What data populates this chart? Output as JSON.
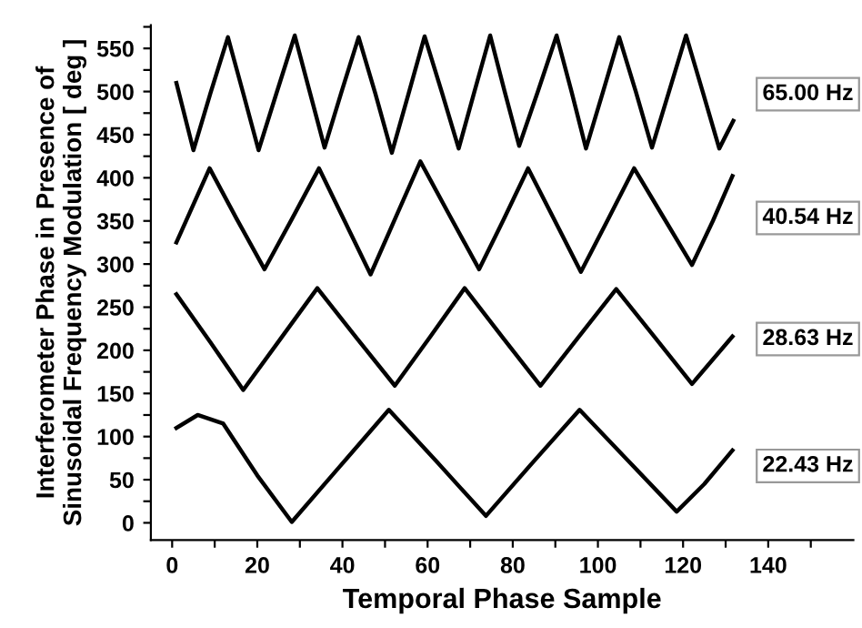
{
  "chart_data": {
    "type": "line",
    "xlabel": "Temporal Phase Sample",
    "ylabel": "Interferometer Phase in Presence of\nSinusoidal Frequency Modulation [ deg ]",
    "xlim": [
      -5,
      160
    ],
    "ylim": [
      -20,
      577
    ],
    "xticks": [
      0,
      {
        "value": 10,
        "label": null
      },
      20,
      {
        "value": 30,
        "label": null
      },
      40,
      {
        "value": 50,
        "label": null
      },
      60,
      {
        "value": 70,
        "label": null
      },
      80,
      {
        "value": 90,
        "label": null
      },
      100,
      {
        "value": 110,
        "label": null
      },
      120,
      {
        "value": 130,
        "label": null
      },
      140,
      {
        "value": 150,
        "label": null
      }
    ],
    "yticks": [
      0,
      {
        "value": 25,
        "label": null
      },
      50,
      {
        "value": 75,
        "label": null
      },
      100,
      {
        "value": 125,
        "label": null
      },
      150,
      {
        "value": 175,
        "label": null
      },
      200,
      {
        "value": 225,
        "label": null
      },
      250,
      {
        "value": 275,
        "label": null
      },
      300,
      {
        "value": 325,
        "label": null
      },
      350,
      {
        "value": 375,
        "label": null
      },
      400,
      {
        "value": 425,
        "label": null
      },
      450,
      {
        "value": 475,
        "label": null
      },
      500,
      {
        "value": 525,
        "label": null
      },
      550,
      {
        "value": 575,
        "label": null
      }
    ],
    "grid": false,
    "legend": false,
    "marker": "none",
    "line_style": "solid",
    "series": [
      {
        "name": "65.00 Hz",
        "color": "#000000",
        "x": [
          1,
          5,
          9,
          13.1,
          16.7,
          20.3,
          24.5,
          28.8,
          32.3,
          35.8,
          39.8,
          43.8,
          47.7,
          51.6,
          55.5,
          59.3,
          63.3,
          67.3,
          71,
          74.7,
          78.1,
          81.5,
          85.9,
          90.3,
          93.8,
          97.2,
          101.1,
          105,
          108.9,
          112.7,
          116.7,
          120.7,
          124.6,
          128.5,
          131.8
        ],
        "values": [
          510,
          432,
          498,
          563,
          498,
          432,
          498,
          565,
          500,
          435,
          500,
          563,
          498,
          429,
          497,
          564,
          500,
          434,
          500,
          565,
          500,
          437,
          500,
          565,
          500,
          434,
          498,
          563,
          500,
          435,
          500,
          565,
          500,
          434,
          466
        ]
      },
      {
        "name": "40.54 Hz",
        "color": "#000000",
        "x": [
          1,
          8.8,
          15.2,
          21.7,
          28.1,
          34.5,
          40.5,
          46.6,
          52.5,
          58.3,
          65.2,
          72.1,
          77.9,
          83.6,
          89.8,
          96,
          102.3,
          108.5,
          115.3,
          122.1,
          127,
          131.6
        ],
        "values": [
          325,
          411,
          352,
          294,
          352,
          411,
          350,
          288,
          354,
          419,
          356,
          294,
          352,
          411,
          351,
          291,
          351,
          411,
          355,
          299,
          350,
          402
        ]
      },
      {
        "name": "28.63 Hz",
        "color": "#000000",
        "x": [
          1,
          8.9,
          16.7,
          25.4,
          34.1,
          43.2,
          52.3,
          60.5,
          68.7,
          77.6,
          86.5,
          95.4,
          104.3,
          113.2,
          122.1,
          131.6
        ],
        "values": [
          265,
          210,
          154,
          213,
          272,
          215,
          159,
          215,
          272,
          215,
          159,
          215,
          271,
          216,
          161,
          216
        ]
      },
      {
        "name": "22.43 Hz",
        "color": "#000000",
        "x": [
          1,
          6,
          12,
          20,
          28.1,
          39.5,
          50.9,
          62.3,
          73.7,
          84.7,
          95.7,
          107.1,
          118.5,
          125,
          131.6
        ],
        "values": [
          110,
          125,
          115,
          55,
          1,
          66,
          131,
          70,
          8,
          70,
          131,
          72,
          13,
          45,
          84
        ]
      }
    ]
  }
}
